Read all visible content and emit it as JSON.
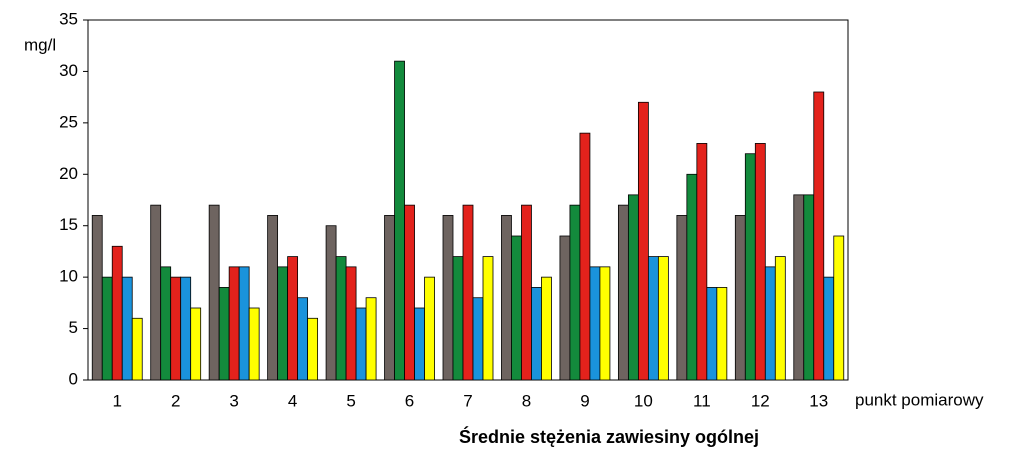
{
  "chart_data": {
    "type": "bar",
    "title": "Średnie stężenia zawiesiny ogólnej",
    "y_label": "mg/l",
    "x_label": "punkt pomiarowy",
    "categories": [
      "1",
      "2",
      "3",
      "4",
      "5",
      "6",
      "7",
      "8",
      "9",
      "10",
      "11",
      "12",
      "13"
    ],
    "series": [
      {
        "color": "#6e6460",
        "values": [
          16,
          17,
          17,
          16,
          15,
          16,
          16,
          16,
          14,
          17,
          16,
          16,
          18
        ]
      },
      {
        "color": "#138a3c",
        "values": [
          10,
          11,
          9,
          11,
          12,
          31,
          12,
          14,
          17,
          18,
          20,
          22,
          18
        ]
      },
      {
        "color": "#e3221c",
        "values": [
          13,
          10,
          11,
          12,
          11,
          17,
          17,
          17,
          24,
          27,
          23,
          23,
          28
        ]
      },
      {
        "color": "#1a93dc",
        "values": [
          10,
          10,
          11,
          8,
          7,
          7,
          8,
          9,
          11,
          12,
          9,
          11,
          10
        ]
      },
      {
        "color": "#ffff00",
        "values": [
          6,
          7,
          7,
          6,
          8,
          10,
          12,
          10,
          11,
          12,
          9,
          12,
          14
        ]
      }
    ],
    "ylim": [
      0,
      35
    ],
    "yticks": [
      0,
      5,
      10,
      15,
      20,
      25,
      30,
      35
    ],
    "grid": false
  }
}
